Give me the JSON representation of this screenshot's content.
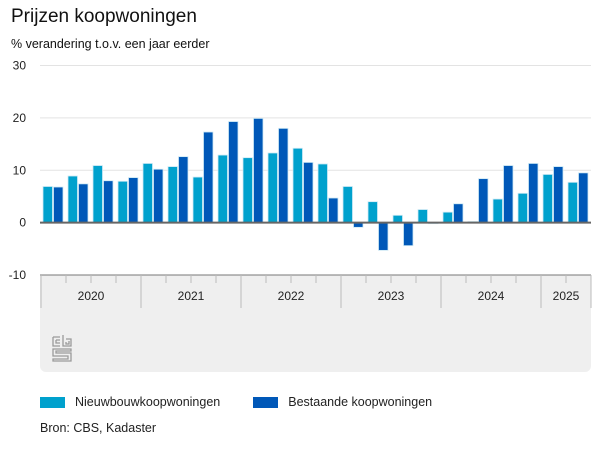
{
  "header": {
    "title": "Prijzen koopwoningen",
    "subtitle": "% verandering t.o.v. een jaar eerder"
  },
  "legend": [
    {
      "label": "Nieuwbouwkoopwoningen",
      "color": "#00a1cd"
    },
    {
      "label": "Bestaande koopwoningen",
      "color": "#0058b8"
    }
  ],
  "footer": {
    "source": "Bron: CBS, Kadaster",
    "logo": "cbs-logo-icon"
  },
  "chart_data": {
    "type": "bar",
    "title": "Prijzen koopwoningen",
    "subtitle": "% verandering t.o.v. een jaar eerder",
    "xlabel": "",
    "ylabel": "% verandering t.o.v. een jaar eerder",
    "ylim": [
      -10,
      30
    ],
    "yticks": [
      30,
      20,
      10,
      0,
      -10
    ],
    "grid": true,
    "legend_position": "bottom-left",
    "years": [
      {
        "label": "2020",
        "quarters": 4
      },
      {
        "label": "2021",
        "quarters": 4
      },
      {
        "label": "2022",
        "quarters": 4
      },
      {
        "label": "2023",
        "quarters": 4
      },
      {
        "label": "2024",
        "quarters": 4
      },
      {
        "label": "2025",
        "quarters": 2
      }
    ],
    "categories": [
      "2020 K1",
      "2020 K2",
      "2020 K3",
      "2020 K4",
      "2021 K1",
      "2021 K2",
      "2021 K3",
      "2021 K4",
      "2022 K1",
      "2022 K2",
      "2022 K3",
      "2022 K4",
      "2023 K1",
      "2023 K2",
      "2023 K3",
      "2023 K4",
      "2024 K1",
      "2024 K2",
      "2024 K3",
      "2024 K4",
      "2025 K1",
      "2025 K2"
    ],
    "series": [
      {
        "name": "Nieuwbouwkoopwoningen",
        "color": "#00a1cd",
        "values": [
          6.9,
          8.9,
          10.9,
          7.9,
          11.3,
          10.7,
          8.7,
          12.9,
          12.4,
          13.3,
          14.2,
          11.2,
          6.9,
          4.0,
          1.4,
          2.5,
          2.0,
          0.2,
          4.5,
          5.6,
          9.2,
          7.7
        ]
      },
      {
        "name": "Bestaande koopwoningen",
        "color": "#0058b8",
        "values": [
          6.8,
          7.4,
          8.0,
          8.6,
          10.2,
          12.6,
          17.3,
          19.3,
          19.9,
          18.0,
          11.5,
          4.7,
          -0.9,
          -5.3,
          -4.4,
          -0.2,
          3.6,
          8.4,
          10.9,
          11.3,
          10.7,
          9.5
        ]
      }
    ]
  }
}
